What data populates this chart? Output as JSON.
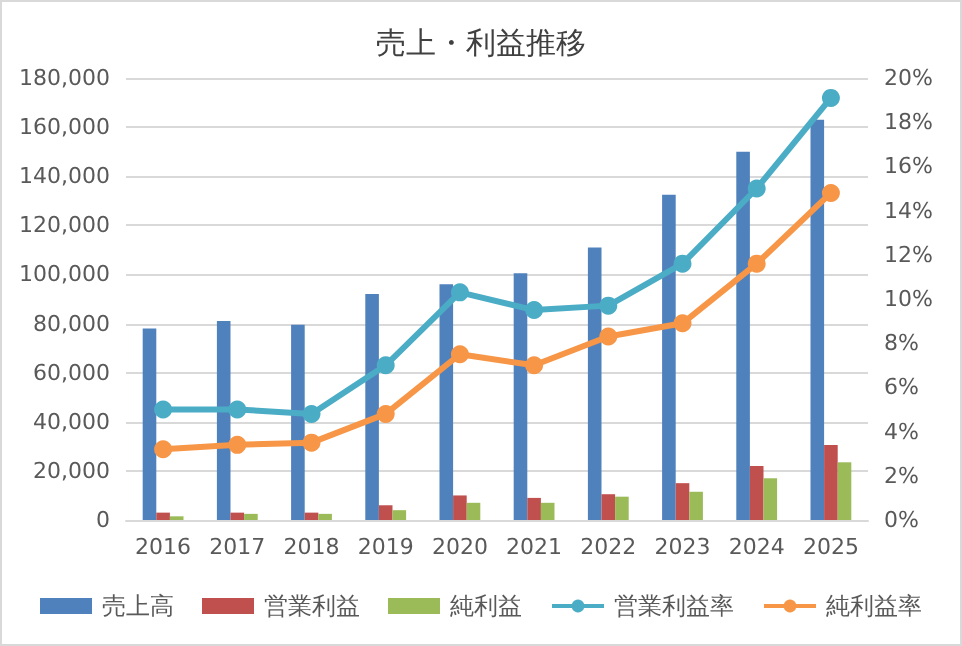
{
  "chart_data": {
    "type": "bar",
    "title": "売上・利益推移",
    "categories": [
      "2016",
      "2017",
      "2018",
      "2019",
      "2020",
      "2021",
      "2022",
      "2023",
      "2024",
      "2025"
    ],
    "series": [
      {
        "name": "売上高",
        "color": "#4f81bd",
        "values": [
          78000,
          81000,
          79500,
          92000,
          96000,
          100500,
          111000,
          132500,
          150000,
          163000
        ]
      },
      {
        "name": "営業利益",
        "color": "#c0504d",
        "values": [
          3000,
          3000,
          3000,
          6000,
          10000,
          9000,
          10500,
          15000,
          22000,
          30500
        ]
      },
      {
        "name": "純利益",
        "color": "#9bbb59",
        "values": [
          1500,
          2500,
          2500,
          4000,
          7000,
          7000,
          9500,
          11500,
          17000,
          23500
        ]
      },
      {
        "name": "営業利益率",
        "type": "line",
        "axis": "y2",
        "color": "#4bacc6",
        "values": [
          5.0,
          5.0,
          4.8,
          7.0,
          10.3,
          9.5,
          9.7,
          11.6,
          15.0,
          19.1
        ]
      },
      {
        "name": "純利益率",
        "type": "line",
        "axis": "y2",
        "color": "#f79646",
        "values": [
          3.2,
          3.4,
          3.5,
          4.8,
          7.5,
          7.0,
          8.3,
          8.9,
          11.6,
          14.8
        ]
      }
    ],
    "ylim": [
      0,
      180000
    ],
    "yticks": [
      {
        "value": 0,
        "label": "0"
      },
      {
        "value": 20000,
        "label": "20,000"
      },
      {
        "value": 40000,
        "label": "40,000"
      },
      {
        "value": 60000,
        "label": "60,000"
      },
      {
        "value": 80000,
        "label": "80,000"
      },
      {
        "value": 100000,
        "label": "100,000"
      },
      {
        "value": 120000,
        "label": "120,000"
      },
      {
        "value": 140000,
        "label": "140,000"
      },
      {
        "value": 160000,
        "label": "160,000"
      },
      {
        "value": 180000,
        "label": "180,000"
      }
    ],
    "y2lim": [
      0,
      20
    ],
    "y2ticks": [
      {
        "value": 0,
        "label": "0%"
      },
      {
        "value": 2,
        "label": "2%"
      },
      {
        "value": 4,
        "label": "4%"
      },
      {
        "value": 6,
        "label": "6%"
      },
      {
        "value": 8,
        "label": "8%"
      },
      {
        "value": 10,
        "label": "10%"
      },
      {
        "value": 12,
        "label": "12%"
      },
      {
        "value": 14,
        "label": "14%"
      },
      {
        "value": 16,
        "label": "16%"
      },
      {
        "value": 18,
        "label": "18%"
      },
      {
        "value": 20,
        "label": "20%"
      }
    ],
    "grid": "y",
    "legend": "bottom",
    "marker": "circle"
  }
}
